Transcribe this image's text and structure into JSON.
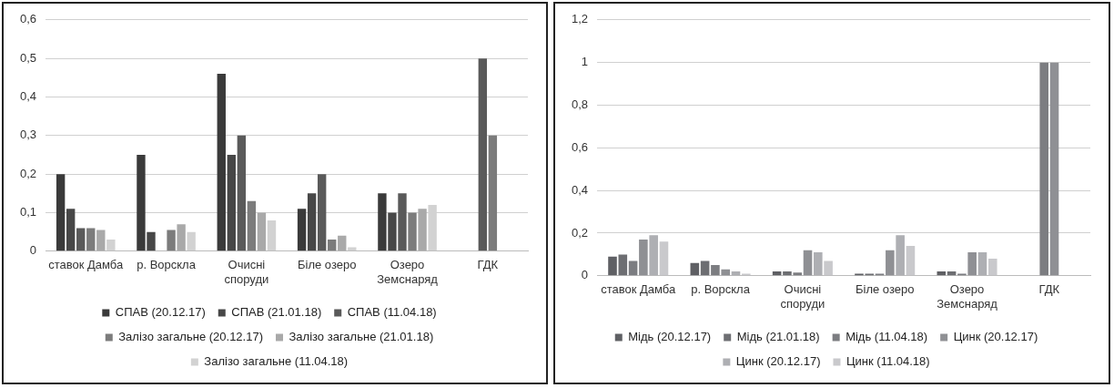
{
  "chart_data": [
    {
      "type": "bar",
      "categories": [
        "ставок Дамба",
        "р. Ворскла",
        "Очисні споруди",
        "Біле озеро",
        "Озеро Земснаряд",
        "ГДК"
      ],
      "series": [
        {
          "name": "СПАВ (20.12.17)",
          "color": "#3a3a3a",
          "values": [
            0.2,
            0.25,
            0.46,
            0.11,
            0.15,
            null
          ]
        },
        {
          "name": "СПАВ (21.01.18)",
          "color": "#474747",
          "values": [
            0.11,
            0.05,
            0.25,
            0.15,
            0.1,
            null
          ]
        },
        {
          "name": "СПАВ (11.04.18)",
          "color": "#5a5a5a",
          "values": [
            0.06,
            null,
            0.3,
            0.2,
            0.15,
            0.5
          ]
        },
        {
          "name": "Залізо загальне (20.12.17)",
          "color": "#7c7c7c",
          "values": [
            0.06,
            0.055,
            0.13,
            0.03,
            0.1,
            0.3
          ]
        },
        {
          "name": "Залізо загальне (21.01.18)",
          "color": "#a9a9a9",
          "values": [
            0.055,
            0.07,
            0.1,
            0.04,
            0.11,
            null
          ]
        },
        {
          "name": "Залізо загальне (11.04.18)",
          "color": "#d2d2d2",
          "values": [
            0.03,
            0.05,
            0.08,
            0.01,
            0.12,
            null
          ]
        }
      ],
      "ylim": [
        0,
        0.6
      ],
      "yticks": [
        {
          "value": 0,
          "label": "0"
        },
        {
          "value": 0.1,
          "label": "0,1"
        },
        {
          "value": 0.2,
          "label": "0,2"
        },
        {
          "value": 0.3,
          "label": "0,3"
        },
        {
          "value": 0.4,
          "label": "0,4"
        },
        {
          "value": 0.5,
          "label": "0,5"
        },
        {
          "value": 0.6,
          "label": "0,6"
        }
      ],
      "grid": "y",
      "legend": "bottom"
    },
    {
      "type": "bar",
      "categories": [
        "ставок Дамба",
        "р. Ворскла",
        "Очисні споруди",
        "Біле озеро",
        "Озеро Земснаряд",
        "ГДК"
      ],
      "series": [
        {
          "name": "Мідь (20.12.17)",
          "color": "#5f6064",
          "values": [
            0.09,
            0.06,
            0.02,
            0.01,
            0.02,
            null
          ]
        },
        {
          "name": "Мідь (21.01.18)",
          "color": "#6d6e72",
          "values": [
            0.1,
            0.07,
            0.02,
            0.01,
            0.02,
            null
          ]
        },
        {
          "name": "Мідь (11.04.18)",
          "color": "#7c7d81",
          "values": [
            0.07,
            0.05,
            0.015,
            0.01,
            0.01,
            1
          ]
        },
        {
          "name": "Цинк (20.12.17)",
          "color": "#8f9094",
          "values": [
            0.17,
            0.03,
            0.12,
            0.12,
            0.11,
            1
          ]
        },
        {
          "name": "Цинк (20.12.17)",
          "color": "#aeafb3",
          "values": [
            0.19,
            0.02,
            0.11,
            0.19,
            0.11,
            null
          ]
        },
        {
          "name": "Цинк (11.04.18)",
          "color": "#c9c9cc",
          "values": [
            0.16,
            0.01,
            0.07,
            0.14,
            0.08,
            null
          ]
        }
      ],
      "ylim": [
        0,
        1.2
      ],
      "yticks": [
        {
          "value": 0,
          "label": "0"
        },
        {
          "value": 0.2,
          "label": "0,2"
        },
        {
          "value": 0.4,
          "label": "0,4"
        },
        {
          "value": 0.6,
          "label": "0,6"
        },
        {
          "value": 0.8,
          "label": "0,8"
        },
        {
          "value": 1,
          "label": "1"
        },
        {
          "value": 1.2,
          "label": "1,2"
        }
      ],
      "grid": "y",
      "legend": "bottom"
    }
  ]
}
